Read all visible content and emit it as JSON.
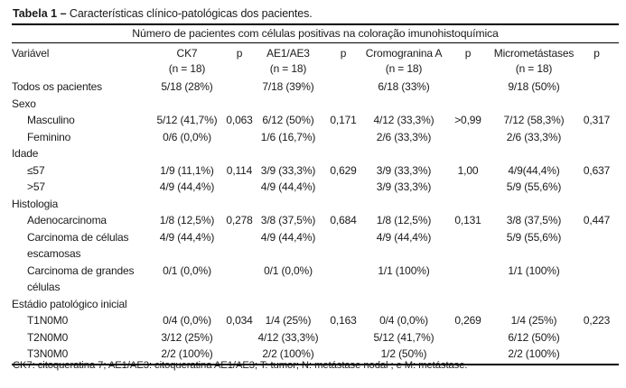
{
  "title": {
    "label": "Tabela 1 –",
    "text": " Características clínico-patológicas dos pacientes."
  },
  "table": {
    "span_header": "Número de pacientes com células positivas na coloração imunohistoquímica",
    "columns": [
      {
        "label": "Variável",
        "sub": ""
      },
      {
        "label": "CK7",
        "sub": "(n = 18)"
      },
      {
        "label": "p",
        "sub": ""
      },
      {
        "label": "AE1/AE3",
        "sub": "(n = 18)"
      },
      {
        "label": "p",
        "sub": ""
      },
      {
        "label": "Cromogranina A",
        "sub": "(n = 18)"
      },
      {
        "label": "p",
        "sub": ""
      },
      {
        "label": "Micrometástases",
        "sub": "(n = 18)"
      },
      {
        "label": "p",
        "sub": ""
      }
    ],
    "rows": [
      {
        "type": "data",
        "indent": 0,
        "cells": [
          "Todos os pacientes",
          "5/18 (28%)",
          "",
          "7/18 (39%)",
          "",
          "6/18 (33%)",
          "",
          "9/18 (50%)",
          ""
        ]
      },
      {
        "type": "section",
        "indent": 0,
        "cells": [
          "Sexo",
          "",
          "",
          "",
          "",
          "",
          "",
          "",
          ""
        ]
      },
      {
        "type": "data",
        "indent": 1,
        "cells": [
          "Masculino",
          "5/12 (41,7%)",
          "0,063",
          "6/12 (50%)",
          "0,171",
          "4/12 (33,3%)",
          ">0,99",
          "7/12 (58,3%)",
          "0,317"
        ]
      },
      {
        "type": "data",
        "indent": 1,
        "cells": [
          "Feminino",
          "0/6 (0,0%)",
          "",
          "1/6 (16,7%)",
          "",
          "2/6 (33,3%)",
          "",
          "2/6 (33,3%)",
          ""
        ]
      },
      {
        "type": "section",
        "indent": 0,
        "cells": [
          "Idade",
          "",
          "",
          "",
          "",
          "",
          "",
          "",
          ""
        ]
      },
      {
        "type": "data",
        "indent": 1,
        "cells": [
          "≤57",
          "1/9 (11,1%)",
          "0,114",
          "3/9 (33,3%)",
          "0,629",
          "3/9 (33,3%)",
          "1,00",
          "4/9(44,4%)",
          "0,637"
        ]
      },
      {
        "type": "data",
        "indent": 1,
        "cells": [
          ">57",
          "4/9 (44,4%)",
          "",
          "4/9 (44,4%)",
          "",
          "3/9 (33,3%)",
          "",
          "5/9 (55,6%)",
          ""
        ]
      },
      {
        "type": "section",
        "indent": 0,
        "cells": [
          "Histologia",
          "",
          "",
          "",
          "",
          "",
          "",
          "",
          ""
        ]
      },
      {
        "type": "data",
        "indent": 1,
        "cells": [
          "Adenocarcinoma",
          "1/8 (12,5%)",
          "0,278",
          "3/8 (37,5%)",
          "0,684",
          "1/8 (12,5%)",
          "0,131",
          "3/8 (37,5%)",
          "0,447"
        ]
      },
      {
        "type": "data",
        "indent": 1,
        "cells": [
          "Carcinoma de células escamosas",
          "4/9 (44,4%)",
          "",
          "4/9 (44,4%)",
          "",
          "4/9 (44,4%)",
          "",
          "5/9 (55,6%)",
          ""
        ]
      },
      {
        "type": "data",
        "indent": 1,
        "cells": [
          "Carcinoma de grandes células",
          "0/1 (0,0%)",
          "",
          "0/1 (0,0%)",
          "",
          "1/1 (100%)",
          "",
          "1/1 (100%)",
          ""
        ]
      },
      {
        "type": "section",
        "indent": 0,
        "cells": [
          "Estádio patológico inicial",
          "",
          "",
          "",
          "",
          "",
          "",
          "",
          ""
        ]
      },
      {
        "type": "data",
        "indent": 1,
        "cells": [
          "T1N0M0",
          "0/4 (0,0%)",
          "0,034",
          "1/4 (25%)",
          "0,163",
          "0/4 (0,0%)",
          "0,269",
          "1/4 (25%)",
          "0,223"
        ]
      },
      {
        "type": "data",
        "indent": 1,
        "cells": [
          "T2N0M0",
          "3/12 (25%)",
          "",
          "4/12 (33,3%)",
          "",
          "5/12 (41,7%)",
          "",
          "6/12 (50%)",
          ""
        ]
      },
      {
        "type": "data",
        "indent": 1,
        "cells": [
          "T3N0M0",
          "2/2 (100%)",
          "",
          "2/2 (100%)",
          "",
          "1/2 (50%)",
          "",
          "2/2 (100%)",
          ""
        ]
      }
    ]
  },
  "footnote": "CK7: citoqueratina 7; AE1/AE3: citoqueratina AE1/AE3; T: tumor; N: metástase nodal ; e M: metástase."
}
